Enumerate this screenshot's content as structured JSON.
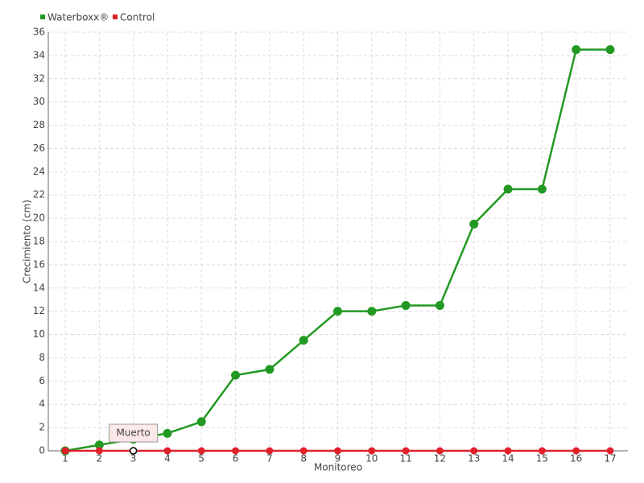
{
  "chart_data": {
    "type": "line",
    "x_label": "Monitoreo",
    "y_label": "Crecimiento (cm)",
    "categories": [
      "1",
      "2",
      "3",
      "4",
      "5",
      "6",
      "7",
      "8",
      "9",
      "10",
      "11",
      "12",
      "13",
      "14",
      "15",
      "16",
      "17"
    ],
    "series": [
      {
        "name": "Waterboxx®",
        "color": "#229922",
        "values": [
          0,
          0.5,
          1,
          1.5,
          2.5,
          6.5,
          7,
          9.5,
          12,
          12,
          12.5,
          12.5,
          19.5,
          22.5,
          22.5,
          34.5,
          34.5
        ]
      },
      {
        "name": "Control",
        "color": "#e0202a",
        "values": [
          0,
          0,
          0,
          0,
          0,
          0,
          0,
          0,
          0,
          0,
          0,
          0,
          0,
          0,
          0,
          0,
          0
        ]
      }
    ],
    "tooltip": "Muerto",
    "ylim": [
      0,
      36
    ],
    "yticks": [
      0,
      2,
      4,
      6,
      8,
      10,
      12,
      14,
      16,
      18,
      20,
      22,
      24,
      26,
      28,
      30,
      32,
      34,
      36
    ],
    "grid": true,
    "legend": "top-left"
  }
}
